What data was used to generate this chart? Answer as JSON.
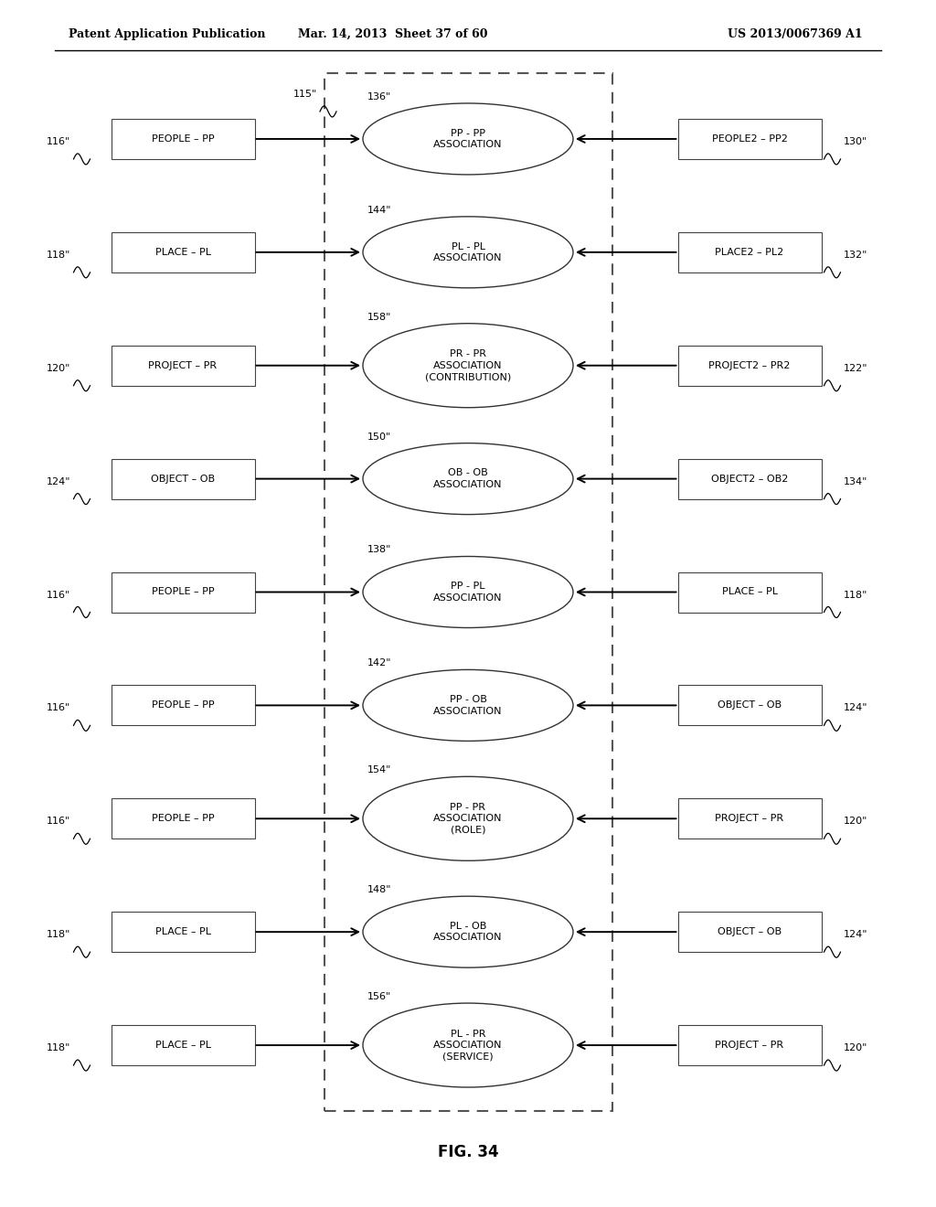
{
  "header_left": "Patent Application Publication",
  "header_mid": "Mar. 14, 2013  Sheet 37 of 60",
  "header_right": "US 2013/0067369 A1",
  "figure_label": "FIG. 34",
  "bg_color": "#ffffff",
  "rows": [
    {
      "ellipse_label": "PP - PP\nASSOCIATION",
      "ellipse_num": "136\"",
      "left_box": "PEOPLE – PP",
      "left_num": "116\"",
      "left_ref": "115\"",
      "right_box": "PEOPLE2 – PP2",
      "right_num": "130\""
    },
    {
      "ellipse_label": "PL - PL\nASSOCIATION",
      "ellipse_num": "144\"",
      "left_box": "PLACE – PL",
      "left_num": "118\"",
      "left_ref": null,
      "right_box": "PLACE2 – PL2",
      "right_num": "132\""
    },
    {
      "ellipse_label": "PR - PR\nASSOCIATION\n(CONTRIBUTION)",
      "ellipse_num": "158\"",
      "left_box": "PROJECT – PR",
      "left_num": "120\"",
      "left_ref": null,
      "right_box": "PROJECT2 – PR2",
      "right_num": "122\""
    },
    {
      "ellipse_label": "OB - OB\nASSOCIATION",
      "ellipse_num": "150\"",
      "left_box": "OBJECT – OB",
      "left_num": "124\"",
      "left_ref": null,
      "right_box": "OBJECT2 – OB2",
      "right_num": "134\""
    },
    {
      "ellipse_label": "PP - PL\nASSOCIATION",
      "ellipse_num": "138\"",
      "left_box": "PEOPLE – PP",
      "left_num": "116\"",
      "left_ref": null,
      "right_box": "PLACE – PL",
      "right_num": "118\""
    },
    {
      "ellipse_label": "PP - OB\nASSOCIATION",
      "ellipse_num": "142\"",
      "left_box": "PEOPLE – PP",
      "left_num": "116\"",
      "left_ref": null,
      "right_box": "OBJECT – OB",
      "right_num": "124\""
    },
    {
      "ellipse_label": "PP - PR\nASSOCIATION\n(ROLE)",
      "ellipse_num": "154\"",
      "left_box": "PEOPLE – PP",
      "left_num": "116\"",
      "left_ref": null,
      "right_box": "PROJECT – PR",
      "right_num": "120\""
    },
    {
      "ellipse_label": "PL - OB\nASSOCIATION",
      "ellipse_num": "148\"",
      "left_box": "PLACE – PL",
      "left_num": "118\"",
      "left_ref": null,
      "right_box": "OBJECT – OB",
      "right_num": "124\""
    },
    {
      "ellipse_label": "PL - PR\nASSOCIATION\n(SERVICE)",
      "ellipse_num": "156\"",
      "left_box": "PLACE – PL",
      "left_num": "118\"",
      "left_ref": null,
      "right_box": "PROJECT – PR",
      "right_num": "120\""
    }
  ]
}
